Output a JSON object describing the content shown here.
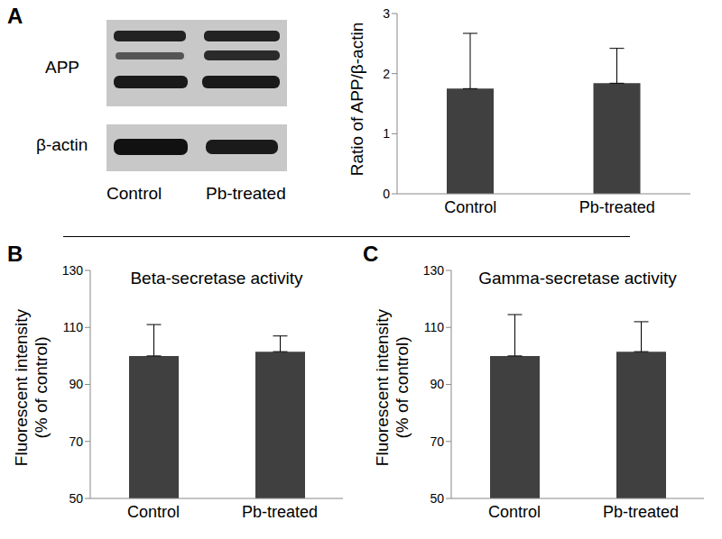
{
  "panel_labels": [
    "A",
    "B",
    "C"
  ],
  "blot": {
    "row_labels": [
      "APP",
      "β-actin"
    ],
    "lane_labels": [
      "Control",
      "Pb-treated"
    ]
  },
  "chart_data": [
    {
      "type": "bar",
      "ylabel": [
        "Ratio of APP/β-actin"
      ],
      "categories": [
        "Control",
        "Pb-treated"
      ],
      "values": [
        1.75,
        1.84
      ],
      "errors": [
        0.92,
        0.58
      ],
      "color": "#404040",
      "ylim": [
        0,
        3
      ],
      "yticks": [
        0,
        1,
        2,
        3
      ],
      "grid": false
    },
    {
      "type": "bar",
      "title": "Beta-secretase activity",
      "ylabel": [
        "Fluorescent intensity",
        "(% of control)"
      ],
      "categories": [
        "Control",
        "Pb-treated"
      ],
      "values": [
        100,
        101.5
      ],
      "errors": [
        11,
        5.5
      ],
      "color": "#404040",
      "ylim": [
        50,
        130
      ],
      "yticks": [
        50,
        70,
        90,
        110,
        130
      ],
      "grid": false
    },
    {
      "type": "bar",
      "title": "Gamma-secretase activity",
      "ylabel": [
        "Fluorescent intensity",
        "(% of control)"
      ],
      "categories": [
        "Control",
        "Pb-treated"
      ],
      "values": [
        100,
        101.5
      ],
      "errors": [
        14.5,
        10.5
      ],
      "color": "#404040",
      "ylim": [
        50,
        130
      ],
      "yticks": [
        50,
        70,
        90,
        110,
        130
      ],
      "grid": false
    }
  ]
}
